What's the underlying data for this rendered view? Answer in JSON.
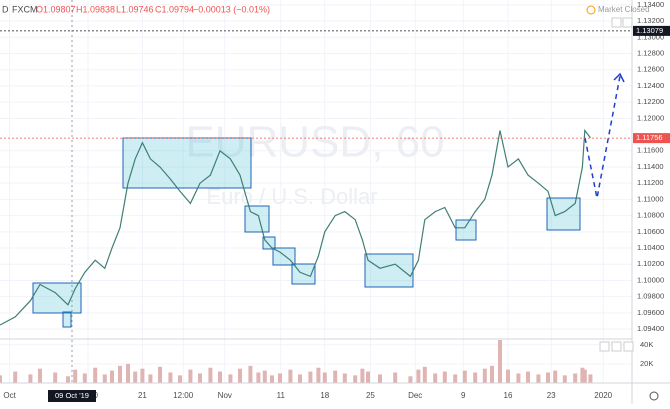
{
  "header": {
    "symbol_cut": "D",
    "source": "FXCM",
    "open": "O1.09807",
    "high": "H1.09838",
    "low": "L1.09746",
    "close": "C1.09794",
    "change": "−0.00013 (−0.01%)",
    "status": "Market Closed"
  },
  "chart_data": [
    {
      "type": "line",
      "title": "EURUSD, 60",
      "subtitle": "Euro / U.S. Dollar",
      "color": "#3f7f74",
      "x": [
        0,
        19,
        38,
        50,
        69,
        85,
        94,
        106,
        119,
        131,
        140,
        150,
        160,
        169,
        178,
        188,
        200,
        213,
        225,
        238,
        250,
        263,
        275,
        288,
        300,
        313,
        323,
        331,
        340,
        350,
        363,
        375,
        388,
        398,
        406,
        419,
        431,
        444,
        453,
        460,
        475,
        494,
        513,
        523,
        531,
        544,
        556,
        569,
        581,
        594,
        606,
        615,
        625,
        635,
        648,
        660,
        673,
        685,
        694,
        706,
        719,
        728,
        731,
        738
      ],
      "values": [
        1.0945,
        1.0955,
        1.0975,
        1.0995,
        1.0985,
        1.097,
        1.099,
        1.101,
        1.1025,
        1.1015,
        1.104,
        1.1065,
        1.112,
        1.115,
        1.117,
        1.115,
        1.114,
        1.1125,
        1.111,
        1.1095,
        1.112,
        1.113,
        1.116,
        1.115,
        1.113,
        1.1085,
        1.108,
        1.105,
        1.104,
        1.1035,
        1.1025,
        1.101,
        1.1005,
        1.103,
        1.106,
        1.108,
        1.1085,
        1.1075,
        1.105,
        1.1025,
        1.1015,
        1.102,
        1.1005,
        1.1025,
        1.1075,
        1.1085,
        1.109,
        1.1065,
        1.1065,
        1.1085,
        1.11,
        1.113,
        1.1185,
        1.114,
        1.115,
        1.113,
        1.112,
        1.111,
        1.108,
        1.1085,
        1.1095,
        1.114,
        1.1185,
        1.1176
      ],
      "xlim": [
        0,
        790
      ],
      "ylim": [
        1.0929,
        1.1346
      ],
      "xticks": [
        {
          "value": 12,
          "label": "Oct"
        },
        {
          "value": 110,
          "label": "17:00"
        },
        {
          "value": 178,
          "label": "21"
        },
        {
          "value": 229,
          "label": "12:00"
        },
        {
          "value": 281,
          "label": "Nov"
        },
        {
          "value": 351,
          "label": "11"
        },
        {
          "value": 406,
          "label": "18"
        },
        {
          "value": 463,
          "label": "25"
        },
        {
          "value": 519,
          "label": "Dec"
        },
        {
          "value": 579,
          "label": "9"
        },
        {
          "value": 635,
          "label": "16"
        },
        {
          "value": 689,
          "label": "23"
        },
        {
          "value": 754,
          "label": "2020"
        }
      ],
      "yticks": [
        {
          "value": 1.134,
          "label": "1.13400"
        },
        {
          "value": 1.132,
          "label": "1.13200"
        },
        {
          "value": 1.13,
          "label": "1.13000"
        },
        {
          "value": 1.128,
          "label": "1.12800"
        },
        {
          "value": 1.126,
          "label": "1.12600"
        },
        {
          "value": 1.124,
          "label": "1.12400"
        },
        {
          "value": 1.122,
          "label": "1.12200"
        },
        {
          "value": 1.12,
          "label": "1.12000"
        },
        {
          "value": 1.116,
          "label": "1.11600"
        },
        {
          "value": 1.114,
          "label": "1.11400"
        },
        {
          "value": 1.112,
          "label": "1.11200"
        },
        {
          "value": 1.11,
          "label": "1.11000"
        },
        {
          "value": 1.108,
          "label": "1.10800"
        },
        {
          "value": 1.106,
          "label": "1.10600"
        },
        {
          "value": 1.104,
          "label": "1.10400"
        },
        {
          "value": 1.102,
          "label": "1.10200"
        },
        {
          "value": 1.1,
          "label": "1.10000"
        },
        {
          "value": 1.098,
          "label": "1.09800"
        },
        {
          "value": 1.096,
          "label": "1.09600"
        },
        {
          "value": 1.094,
          "label": "1.09400"
        }
      ],
      "price_lines": [
        {
          "value": 1.13079,
          "label": "1.13079",
          "color": "#131722"
        },
        {
          "value": 1.11756,
          "label": "1.11756",
          "color": "#ef5350"
        }
      ],
      "crosshair": {
        "x": 90,
        "label": "09 Oct '19"
      },
      "grid": true
    },
    {
      "type": "bar",
      "color": "#e0b4b2",
      "values": [
        8000,
        12000,
        9000,
        15000,
        11000,
        7000,
        14000,
        10000,
        16000,
        9000,
        13000,
        18000,
        20000,
        12000,
        15000,
        9000,
        17000,
        11000,
        8000,
        14000,
        10000,
        16000,
        12000,
        9000,
        15000,
        18000,
        11000,
        13000,
        8000,
        10000,
        14000,
        9000,
        12000,
        16000,
        11000,
        13000,
        10000,
        8000,
        15000,
        12000,
        9000,
        11000,
        7000,
        14000,
        17000,
        10000,
        12000,
        9000,
        13000,
        11000,
        15000,
        18000,
        45000,
        14000,
        10000,
        12000,
        9000,
        11000,
        13000,
        8000,
        10000,
        16000,
        14000,
        9000
      ],
      "ylim": [
        0,
        45000
      ],
      "yticks": [
        {
          "value": 40000,
          "label": "40K"
        },
        {
          "value": 20000,
          "label": "20K"
        }
      ]
    }
  ]
}
